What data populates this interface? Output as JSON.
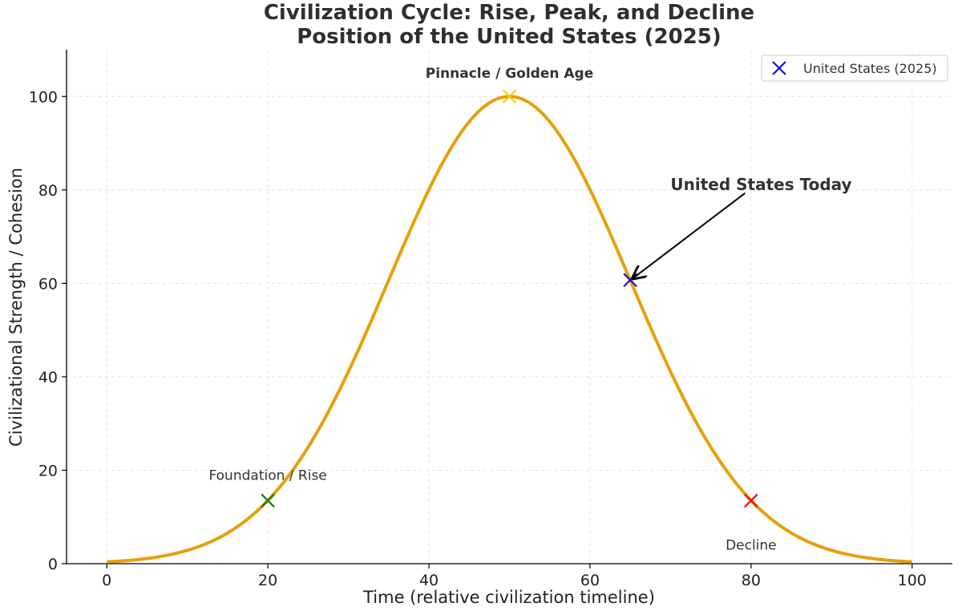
{
  "chart_data": {
    "type": "line",
    "title": [
      "Civilization Cycle: Rise, Peak, and Decline",
      "Position of the United States (2025)"
    ],
    "xlabel": "Time (relative civilization timeline)",
    "ylabel": "Civilizational Strength / Cohesion",
    "xlim": [
      -5,
      105
    ],
    "ylim": [
      0,
      110
    ],
    "xticks": [
      0,
      20,
      40,
      60,
      80,
      100
    ],
    "yticks": [
      0,
      20,
      40,
      60,
      80,
      100
    ],
    "grid": true,
    "curve": {
      "name": "Civilization cycle",
      "color": "#e6a00b",
      "x": [
        0,
        5,
        10,
        15,
        20,
        25,
        30,
        35,
        40,
        45,
        50,
        55,
        60,
        65,
        70,
        75,
        80,
        85,
        90,
        95,
        100
      ],
      "y": [
        0.3,
        1.1,
        3.5,
        8.6,
        13.5,
        26.2,
        41.1,
        60.7,
        80.2,
        94.5,
        100,
        94.5,
        80.2,
        60.7,
        41.1,
        26.2,
        13.5,
        8.6,
        3.5,
        1.1,
        0.3
      ]
    },
    "markers": [
      {
        "name": "foundation",
        "x": 20,
        "y": 13.5,
        "color": "#1a7f1a"
      },
      {
        "name": "peak",
        "x": 50,
        "y": 100,
        "color": "#f5d000"
      },
      {
        "name": "us-2025",
        "x": 65,
        "y": 60.7,
        "color": "#1010d8"
      },
      {
        "name": "decline",
        "x": 80,
        "y": 13.5,
        "color": "#ee1111"
      }
    ],
    "annotations": {
      "foundation": {
        "text": "Foundation / Rise",
        "x": 20,
        "y": 19
      },
      "peak": {
        "text": "Pinnacle / Golden Age",
        "x": 50,
        "y": 105
      },
      "decline": {
        "text": "Decline",
        "x": 80,
        "y": 4
      },
      "today": {
        "text": "United States Today",
        "x": 70,
        "y": 80
      }
    },
    "legend": {
      "label": "United States (2025)",
      "position": "top-right",
      "marker_color": "#1010d8"
    }
  }
}
